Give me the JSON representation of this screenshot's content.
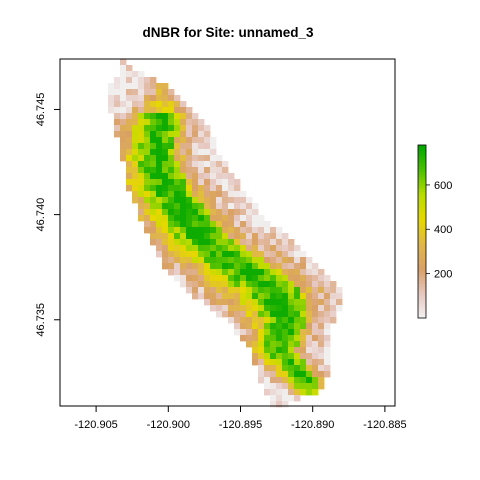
{
  "chart_data": {
    "type": "heatmap",
    "title": "dNBR for Site: unnamed_3",
    "xlabel": "",
    "ylabel": "",
    "xlim": [
      -120.9075,
      -120.8843
    ],
    "ylim": [
      46.7309,
      46.7474
    ],
    "x_ticks": [
      -120.905,
      -120.9,
      -120.895,
      -120.89,
      -120.885
    ],
    "x_tick_labels": [
      "-120.905",
      "-120.900",
      "-120.895",
      "-120.890",
      "-120.885"
    ],
    "y_ticks": [
      46.735,
      46.74,
      46.745
    ],
    "y_tick_labels": [
      "46.735",
      "46.740",
      "46.745"
    ],
    "colorbar": {
      "min": 0,
      "max": 780,
      "ticks": [
        200,
        400,
        600
      ],
      "tick_labels": [
        "200",
        "400",
        "600"
      ],
      "colors": [
        "#f2f2f2",
        "#e6c7c0",
        "#d9a066",
        "#e0b74a",
        "#e6d800",
        "#b8dc00",
        "#4cc000",
        "#00a600"
      ]
    },
    "grid": false,
    "legend": "none",
    "burn_region": {
      "description_values": "dNBR raster of burned area; low values (pink) at margins, high values (green, 500-750) along central ridge",
      "x_range": [
        -120.9035,
        -120.889
      ],
      "y_range": [
        46.731,
        46.747
      ]
    }
  }
}
